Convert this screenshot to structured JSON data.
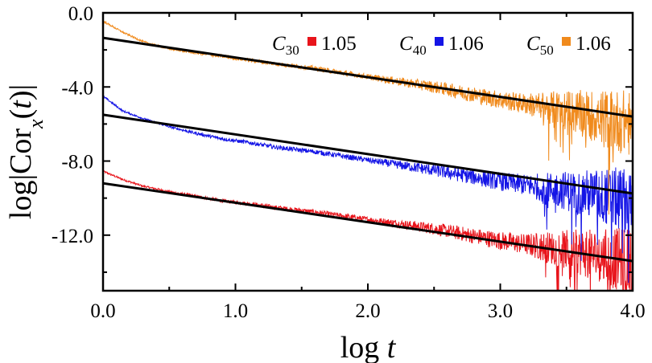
{
  "chart_data": {
    "type": "line",
    "title": "",
    "xlabel": "log t",
    "ylabel": "log|Corx(t)|",
    "xlim": [
      0,
      4.0
    ],
    "ylim": [
      -15,
      0
    ],
    "x_ticks": [
      "0.0",
      "1.0",
      "2.0",
      "3.0",
      "4.0"
    ],
    "y_ticks": [
      "0.0",
      "-4.0",
      "-8.0",
      "-12.0"
    ],
    "x_tick_values": [
      0,
      1,
      2,
      3,
      4
    ],
    "y_tick_values": [
      0,
      -4,
      -8,
      -12
    ],
    "grid": false,
    "legend_position": "top-right",
    "series": [
      {
        "name": "C30",
        "name_main": "C",
        "name_sub": "30",
        "slope_label": "1.05",
        "color": "#e8141b",
        "noisy_points": [
          [
            0,
            -8.55
          ],
          [
            0.15,
            -9.0
          ],
          [
            0.3,
            -9.35
          ],
          [
            0.5,
            -9.65
          ],
          [
            0.7,
            -9.9
          ],
          [
            0.9,
            -10.15
          ],
          [
            1.1,
            -10.3
          ],
          [
            1.3,
            -10.5
          ],
          [
            1.6,
            -10.75
          ],
          [
            2.0,
            -11.15
          ],
          [
            2.5,
            -11.65
          ],
          [
            3.0,
            -12.3
          ],
          [
            3.5,
            -12.8
          ],
          [
            4.0,
            -13.45
          ]
        ],
        "fit_line": [
          [
            0,
            -9.2
          ],
          [
            4.0,
            -13.4
          ]
        ]
      },
      {
        "name": "C40",
        "name_main": "C",
        "name_sub": "40",
        "slope_label": "1.06",
        "color": "#1414e6",
        "noisy_points": [
          [
            0,
            -4.5
          ],
          [
            0.15,
            -5.3
          ],
          [
            0.3,
            -5.7
          ],
          [
            0.5,
            -6.15
          ],
          [
            0.7,
            -6.5
          ],
          [
            0.9,
            -6.8
          ],
          [
            1.1,
            -7.0
          ],
          [
            1.3,
            -7.25
          ],
          [
            1.6,
            -7.5
          ],
          [
            2.0,
            -7.95
          ],
          [
            2.5,
            -8.5
          ],
          [
            3.0,
            -9.1
          ],
          [
            3.5,
            -9.6
          ],
          [
            4.0,
            -10.15
          ]
        ],
        "fit_line": [
          [
            0,
            -5.5
          ],
          [
            4.0,
            -9.75
          ]
        ]
      },
      {
        "name": "C50",
        "name_main": "C",
        "name_sub": "50",
        "slope_label": "1.06",
        "color": "#f08a1c",
        "noisy_points": [
          [
            0,
            -0.45
          ],
          [
            0.15,
            -1.05
          ],
          [
            0.3,
            -1.55
          ],
          [
            0.5,
            -1.95
          ],
          [
            0.7,
            -2.15
          ],
          [
            0.9,
            -2.35
          ],
          [
            1.1,
            -2.55
          ],
          [
            1.3,
            -2.75
          ],
          [
            1.6,
            -3.0
          ],
          [
            2.0,
            -3.45
          ],
          [
            2.5,
            -4.0
          ],
          [
            3.0,
            -4.7
          ],
          [
            3.5,
            -5.25
          ],
          [
            4.0,
            -6.0
          ]
        ],
        "fit_line": [
          [
            0,
            -1.35
          ],
          [
            4.0,
            -5.6
          ]
        ]
      }
    ],
    "fit_line_color": "#000000"
  }
}
